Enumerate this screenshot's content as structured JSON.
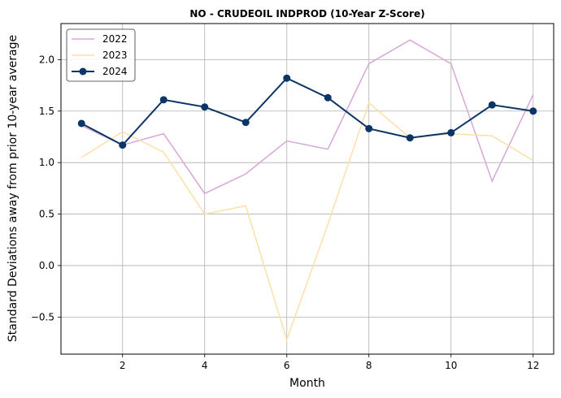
{
  "chart_data": {
    "type": "line",
    "title": "NO - CRUDEOIL INDPROD (10-Year Z-Score)",
    "xlabel": "Month",
    "ylabel": "Standard Deviations away from prior 10-year average",
    "xlim": [
      0.5,
      12.5
    ],
    "ylim": [
      -0.86,
      2.35
    ],
    "xticks": [
      2,
      4,
      6,
      8,
      10,
      12
    ],
    "xtick_labels": [
      "2",
      "4",
      "6",
      "8",
      "10",
      "12"
    ],
    "yticks": [
      -0.5,
      0.0,
      0.5,
      1.0,
      1.5,
      2.0
    ],
    "ytick_labels": [
      "−0.5",
      "0.0",
      "0.5",
      "1.0",
      "1.5",
      "2.0"
    ],
    "grid": true,
    "legend_position": "top-left",
    "x": [
      1,
      2,
      3,
      4,
      5,
      6,
      7,
      8,
      9,
      10,
      11,
      12
    ],
    "series": [
      {
        "name": "2022",
        "color": "#d8a6d8",
        "markers": false,
        "values": [
          1.36,
          1.17,
          1.28,
          0.7,
          0.89,
          1.21,
          1.13,
          1.96,
          2.19,
          1.96,
          0.82,
          1.66
        ]
      },
      {
        "name": "2023",
        "color": "#fde0a8",
        "markers": false,
        "values": [
          1.05,
          1.3,
          1.1,
          0.5,
          0.58,
          -0.72,
          0.4,
          1.58,
          1.24,
          1.28,
          1.26,
          1.02
        ]
      },
      {
        "name": "2024",
        "color": "#0b3566",
        "markers": true,
        "values": [
          1.38,
          1.17,
          1.61,
          1.54,
          1.39,
          1.82,
          1.63,
          1.33,
          1.24,
          1.29,
          1.56,
          1.5
        ]
      }
    ]
  }
}
